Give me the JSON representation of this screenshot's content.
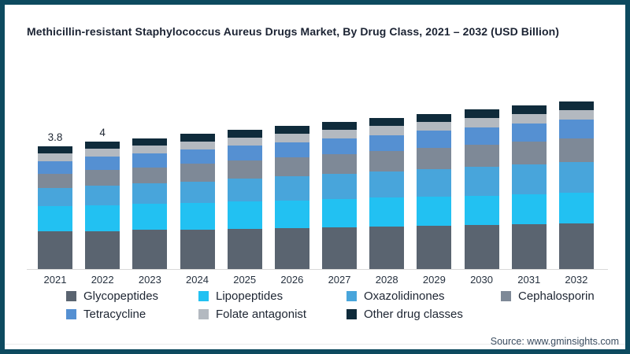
{
  "frame": {
    "border_color": "#0d4a5f",
    "background": "#ffffff"
  },
  "source_text": "Source: www.gminsights.com",
  "chart_data": {
    "type": "bar",
    "stacked": true,
    "title": "Methicillin-resistant Staphylococcus Aureus Drugs Market, By Drug Class, 2021 – 2032 (USD Billion)",
    "unit": "USD Billion",
    "xlabel": "",
    "ylabel": "",
    "ylim": [
      0,
      5.5
    ],
    "gridlines": false,
    "y_axis_visible": false,
    "legend_position": "bottom",
    "baseline_color": "#d9d9d9",
    "categories": [
      "2021",
      "2022",
      "2023",
      "2024",
      "2025",
      "2026",
      "2027",
      "2028",
      "2029",
      "2030",
      "2031",
      "2032"
    ],
    "series": [
      {
        "name": "Glycopeptides",
        "color": "#5a6470",
        "values": [
          1.16,
          1.18,
          1.21,
          1.23,
          1.25,
          1.28,
          1.3,
          1.33,
          1.35,
          1.37,
          1.4,
          1.42
        ]
      },
      {
        "name": "Lipopeptides",
        "color": "#22c1f2",
        "values": [
          0.78,
          0.8,
          0.81,
          0.82,
          0.84,
          0.85,
          0.87,
          0.88,
          0.9,
          0.91,
          0.93,
          0.94
        ]
      },
      {
        "name": "Oxazolidinones",
        "color": "#48a5db",
        "values": [
          0.56,
          0.6,
          0.63,
          0.67,
          0.71,
          0.74,
          0.78,
          0.81,
          0.85,
          0.89,
          0.92,
          0.96
        ]
      },
      {
        "name": "Cephalosporin",
        "color": "#7e8997",
        "values": [
          0.46,
          0.49,
          0.51,
          0.54,
          0.56,
          0.59,
          0.61,
          0.64,
          0.66,
          0.69,
          0.71,
          0.74
        ]
      },
      {
        "name": "Tetracycline",
        "color": "#5590d2",
        "values": [
          0.39,
          0.41,
          0.42,
          0.44,
          0.46,
          0.47,
          0.49,
          0.5,
          0.52,
          0.54,
          0.55,
          0.57
        ]
      },
      {
        "name": "Folate antagonist",
        "color": "#b3b9c0",
        "values": [
          0.24,
          0.25,
          0.25,
          0.26,
          0.26,
          0.27,
          0.27,
          0.28,
          0.28,
          0.29,
          0.29,
          0.3
        ]
      },
      {
        "name": "Other drug classes",
        "color": "#0f2b3b",
        "values": [
          0.21,
          0.22,
          0.22,
          0.23,
          0.23,
          0.24,
          0.24,
          0.25,
          0.25,
          0.26,
          0.27,
          0.27
        ]
      }
    ],
    "bar_labels": {
      "2021": "3.8",
      "2022": "4"
    }
  }
}
